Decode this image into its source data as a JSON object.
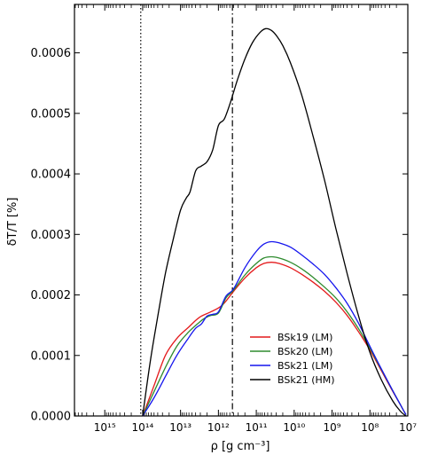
{
  "chart_data": {
    "type": "line",
    "xlabel": "ρ [g cm⁻³]",
    "ylabel": "δT/T [%]",
    "x_scale": "log",
    "x_reversed": true,
    "xlim_log10": [
      15.8,
      7
    ],
    "ylim": [
      0,
      0.00068
    ],
    "y_ticks": [
      0.0,
      0.0001,
      0.0002,
      0.0003,
      0.0004,
      0.0005,
      0.0006
    ],
    "y_tick_labels": [
      "0.0000",
      "0.0001",
      "0.0002",
      "0.0003",
      "0.0004",
      "0.0005",
      "0.0006"
    ],
    "x_ticks_log10": [
      15,
      14,
      13,
      12,
      11,
      10,
      9,
      8,
      7
    ],
    "x_tick_labels": [
      "10¹⁵",
      "10¹⁴",
      "10¹³",
      "10¹²",
      "10¹¹",
      "10¹⁰",
      "10⁹",
      "10⁸",
      "10⁷"
    ],
    "vlines": [
      {
        "x_log10": 14.05,
        "style": "dotted"
      },
      {
        "x_log10": 11.63,
        "style": "dashdot"
      }
    ],
    "legend_position": "lower-center",
    "grid": false,
    "series": [
      {
        "name": "BSk19 (LM)",
        "color": "#e41a1c",
        "x_log10": [
          14.0,
          13.7,
          13.4,
          13.1,
          12.8,
          12.5,
          12.2,
          11.9,
          11.6,
          11.3,
          11.0,
          10.8,
          10.6,
          10.4,
          10.1,
          9.8,
          9.5,
          9.2,
          8.9,
          8.6,
          8.3,
          8.0,
          7.7,
          7.4,
          7.2,
          7.05
        ],
        "y": [
          0.0,
          5e-05,
          0.0001,
          0.000128,
          0.000146,
          0.000163,
          0.000172,
          0.000183,
          0.000206,
          0.000228,
          0.000245,
          0.000252,
          0.000254,
          0.000252,
          0.000245,
          0.000234,
          0.000221,
          0.000206,
          0.000188,
          0.000166,
          0.000139,
          0.000109,
          7.5e-05,
          4.1e-05,
          1.9e-05,
          2e-06
        ]
      },
      {
        "name": "BSk20 (LM)",
        "color": "#2e8b2e",
        "x_log10": [
          14.0,
          13.7,
          13.4,
          13.1,
          12.8,
          12.5,
          12.35,
          12.2,
          12.0,
          11.8,
          11.6,
          11.3,
          11.0,
          10.8,
          10.6,
          10.4,
          10.1,
          9.8,
          9.5,
          9.2,
          8.9,
          8.6,
          8.3,
          8.0,
          7.7,
          7.4,
          7.2,
          7.05
        ],
        "y": [
          0.0,
          4e-05,
          8e-05,
          0.000115,
          0.000138,
          0.000155,
          0.000162,
          0.000166,
          0.00017,
          0.000195,
          0.000208,
          0.000233,
          0.000252,
          0.000261,
          0.000263,
          0.000261,
          0.000254,
          0.000243,
          0.000229,
          0.000213,
          0.000195,
          0.000172,
          0.000144,
          0.000112,
          7.7e-05,
          4.2e-05,
          1.9e-05,
          2e-06
        ]
      },
      {
        "name": "BSk21 (LM)",
        "color": "#1515ee",
        "x_log10": [
          14.0,
          13.7,
          13.4,
          13.1,
          12.8,
          12.6,
          12.45,
          12.3,
          12.15,
          12.0,
          11.8,
          11.6,
          11.3,
          11.0,
          10.8,
          10.6,
          10.4,
          10.1,
          9.8,
          9.5,
          9.2,
          8.9,
          8.6,
          8.3,
          8.0,
          7.7,
          7.4,
          7.2,
          7.05
        ],
        "y": [
          0.0,
          3e-05,
          6.5e-05,
          0.0001,
          0.000128,
          0.000145,
          0.000152,
          0.000165,
          0.000168,
          0.000172,
          0.000198,
          0.00021,
          0.000245,
          0.000272,
          0.000284,
          0.000288,
          0.000286,
          0.000279,
          0.000266,
          0.000251,
          0.000234,
          0.000212,
          0.000186,
          0.000153,
          0.000115,
          7.8e-05,
          4.2e-05,
          1.9e-05,
          2e-06
        ]
      },
      {
        "name": "BSk21 (HM)",
        "color": "#000000",
        "x_log10": [
          14.0,
          13.8,
          13.6,
          13.4,
          13.2,
          13.0,
          12.85,
          12.75,
          12.6,
          12.45,
          12.3,
          12.15,
          12.0,
          11.85,
          11.7,
          11.5,
          11.3,
          11.1,
          10.9,
          10.75,
          10.6,
          10.45,
          10.3,
          10.1,
          9.8,
          9.5,
          9.2,
          8.9,
          8.6,
          8.3,
          8.0,
          7.7,
          7.4,
          7.2,
          7.05
        ],
        "y": [
          0.0,
          9e-05,
          0.000165,
          0.000235,
          0.00029,
          0.00034,
          0.00036,
          0.00037,
          0.000405,
          0.000413,
          0.00042,
          0.00044,
          0.00048,
          0.00049,
          0.000515,
          0.000555,
          0.00059,
          0.000617,
          0.000634,
          0.00064,
          0.000637,
          0.000627,
          0.000612,
          0.000584,
          0.00053,
          0.000462,
          0.00039,
          0.00031,
          0.000235,
          0.000165,
          0.000105,
          6e-05,
          2.5e-05,
          8e-06,
          0.0
        ]
      }
    ]
  }
}
